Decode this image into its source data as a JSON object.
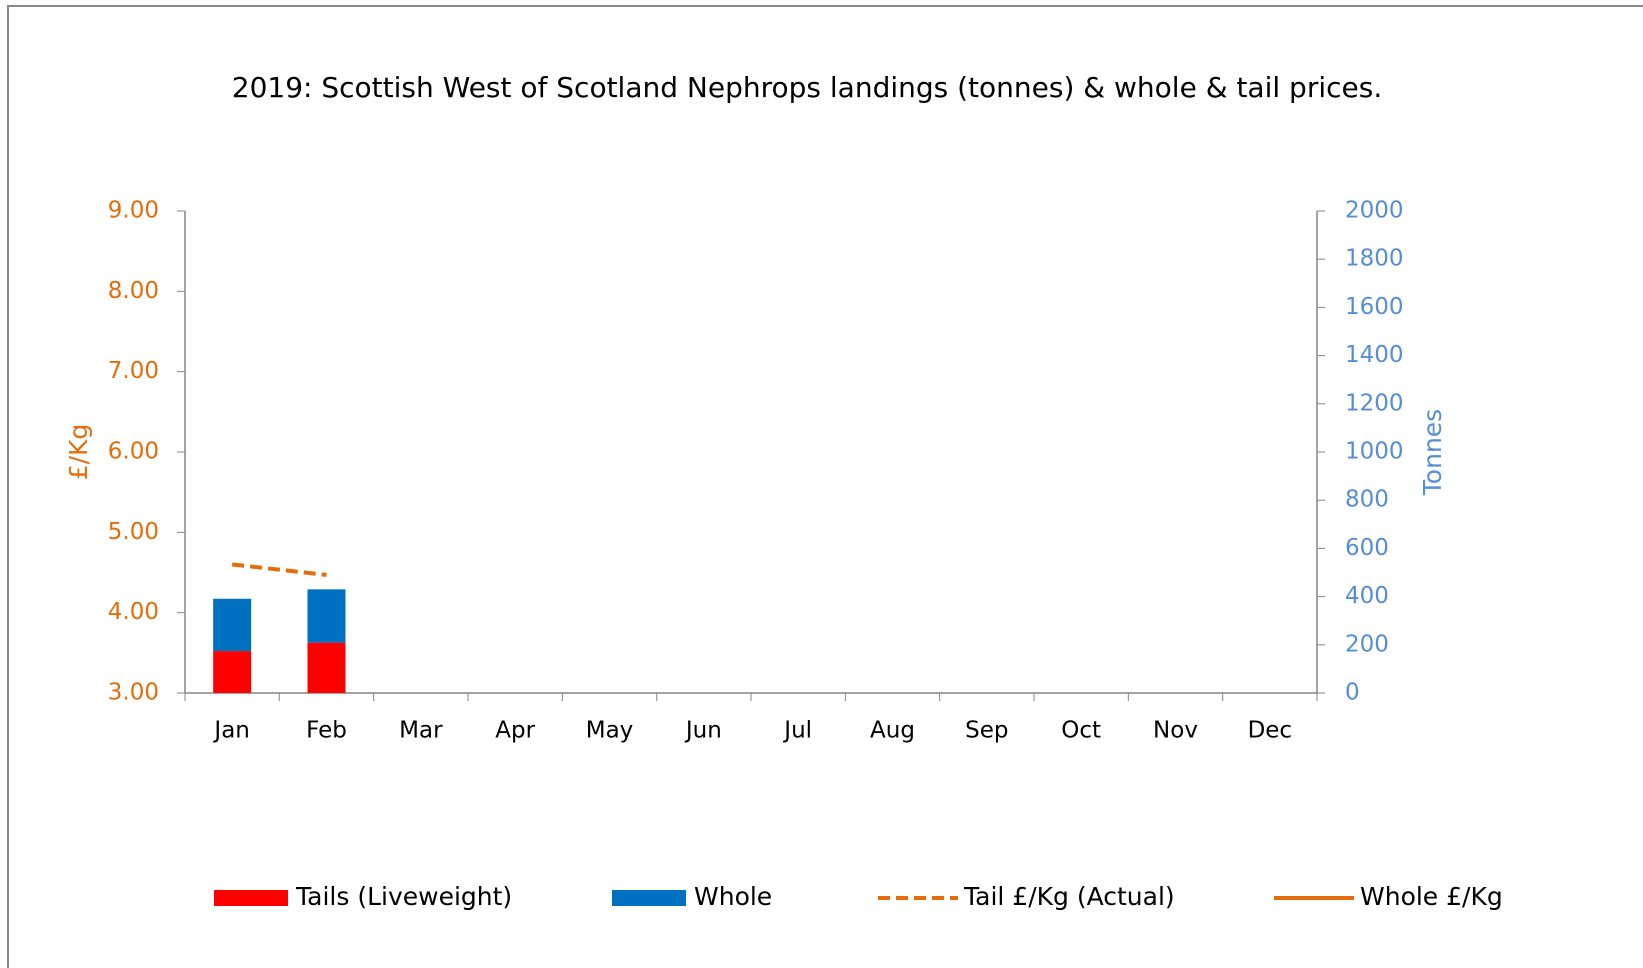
{
  "chart_data": {
    "type": "bar",
    "title": "2019: Scottish West of Scotland Nephrops landings (tonnes) & whole & tail prices.",
    "y_label": "£/Kg",
    "y2_label": "Tonnes",
    "categories": [
      "Jan",
      "Feb",
      "Mar",
      "Apr",
      "May",
      "Jun",
      "Jul",
      "Aug",
      "Sep",
      "Oct",
      "Nov",
      "Dec"
    ],
    "series": [
      {
        "name": "Tails (Liveweight)",
        "type": "bar",
        "stacked": true,
        "axis": "y2",
        "color": "#ff0000",
        "values": [
          174,
          209,
          null,
          null,
          null,
          null,
          null,
          null,
          null,
          null,
          null,
          null
        ]
      },
      {
        "name": "Whole",
        "type": "bar",
        "stacked": true,
        "axis": "y2",
        "color": "#0070c0",
        "values": [
          217,
          221,
          null,
          null,
          null,
          null,
          null,
          null,
          null,
          null,
          null,
          null
        ]
      },
      {
        "name": "Tail £/Kg (Actual)",
        "type": "line",
        "dashed": true,
        "axis": "y",
        "color": "#e46c0a",
        "values": [
          4.6,
          4.47,
          null,
          null,
          null,
          null,
          null,
          null,
          null,
          null,
          null,
          null
        ]
      },
      {
        "name": "Whole £/Kg",
        "type": "line",
        "dashed": false,
        "axis": "y",
        "color": "#e46c0a",
        "values": [
          null,
          null,
          null,
          null,
          null,
          null,
          null,
          null,
          null,
          null,
          null,
          null
        ]
      }
    ],
    "ylim": [
      3,
      9
    ],
    "yticks": [
      {
        "value": 3,
        "label": "3.00"
      },
      {
        "value": 4,
        "label": "4.00"
      },
      {
        "value": 5,
        "label": "5.00"
      },
      {
        "value": 6,
        "label": "6.00"
      },
      {
        "value": 7,
        "label": "7.00"
      },
      {
        "value": 8,
        "label": "8.00"
      },
      {
        "value": 9,
        "label": "9.00"
      }
    ],
    "y_color": "#e46c0a",
    "y2lim": [
      0,
      2000
    ],
    "y2ticks": [
      0,
      200,
      400,
      600,
      800,
      1000,
      1200,
      1400,
      1600,
      1800,
      2000
    ],
    "y2_color": "#558ed5",
    "legend": "bottom",
    "grid": false
  }
}
